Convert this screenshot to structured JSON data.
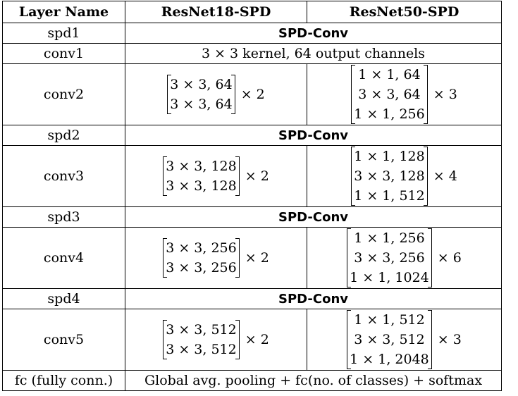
{
  "header": {
    "layer": "Layer Name",
    "r18": "ResNet18-SPD",
    "r50": "ResNet50-SPD"
  },
  "rows": [
    {
      "name": "spd1",
      "span": "SPD-Conv"
    },
    {
      "name": "conv1",
      "span": "3 × 3 kernel, 64 output channels"
    },
    {
      "name": "conv2",
      "r18": [
        "3 × 3, 64",
        "3 × 3, 64"
      ],
      "r18_mult": "× 2",
      "r50": [
        "1 × 1, 64",
        "3 × 3, 64",
        "1 × 1, 256"
      ],
      "r50_mult": "× 3"
    },
    {
      "name": "spd2",
      "span": "SPD-Conv"
    },
    {
      "name": "conv3",
      "r18": [
        "3 × 3, 128",
        "3 × 3, 128"
      ],
      "r18_mult": "× 2",
      "r50": [
        "1 × 1, 128",
        "3 × 3, 128",
        "1 × 1, 512"
      ],
      "r50_mult": "× 4"
    },
    {
      "name": "spd3",
      "span": "SPD-Conv"
    },
    {
      "name": "conv4",
      "r18": [
        "3 × 3, 256",
        "3 × 3, 256"
      ],
      "r18_mult": "× 2",
      "r50": [
        "1 × 1, 256",
        "3 × 3, 256",
        "1 × 1, 1024"
      ],
      "r50_mult": "× 6"
    },
    {
      "name": "spd4",
      "span": "SPD-Conv"
    },
    {
      "name": "conv5",
      "r18": [
        "3 × 3, 512",
        "3 × 3, 512"
      ],
      "r18_mult": "× 2",
      "r50": [
        "1 × 1, 512",
        "3 × 3, 512",
        "1 × 1, 2048"
      ],
      "r50_mult": "× 3"
    },
    {
      "name": "fc (fully conn.)",
      "span": "Global avg. pooling + fc(no. of classes) + softmax"
    }
  ]
}
